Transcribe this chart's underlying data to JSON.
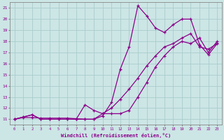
{
  "background_color": "#cce5e5",
  "line_color": "#8b008b",
  "grid_color": "#aacccc",
  "xlabel": "Windchill (Refroidissement éolien,°C)",
  "yticks": [
    11,
    12,
    13,
    14,
    15,
    16,
    17,
    18,
    19,
    20,
    21
  ],
  "xtick_labels": [
    "0",
    "1",
    "2",
    "3",
    "4",
    "5",
    "6",
    "7",
    "8",
    "9",
    "10",
    "11",
    "12",
    "13",
    "14",
    "15",
    "16",
    "17",
    "18",
    "19",
    "20",
    "21",
    "22",
    "23"
  ],
  "curve_spike_x": [
    0,
    1,
    2,
    3,
    4,
    5,
    6,
    7,
    8,
    9,
    10,
    11,
    12,
    13,
    14,
    15,
    16,
    17,
    18,
    19,
    20,
    21,
    22,
    23
  ],
  "curve_spike_y": [
    11,
    11.2,
    11.4,
    11.0,
    11.0,
    11.0,
    11.0,
    11.0,
    11.0,
    11.0,
    11.3,
    12.5,
    15.5,
    17.5,
    21.2,
    20.3,
    19.2,
    18.8,
    19.5,
    20.0,
    20.0,
    17.7,
    16.8,
    17.8
  ],
  "curve_mid_x": [
    0,
    1,
    2,
    3,
    4,
    5,
    6,
    7,
    8,
    9,
    10,
    11,
    12,
    13,
    14,
    15,
    16,
    17,
    18,
    19,
    20,
    21,
    22,
    23
  ],
  "curve_mid_y": [
    11,
    11.2,
    11.4,
    11.0,
    11.0,
    11.0,
    11.0,
    11.0,
    12.3,
    11.8,
    11.5,
    11.5,
    11.5,
    11.8,
    13.0,
    14.3,
    15.7,
    16.7,
    17.5,
    18.0,
    17.8,
    18.3,
    17.0,
    18.0
  ],
  "curve_diag_x": [
    0,
    1,
    2,
    3,
    4,
    5,
    6,
    7,
    8,
    9,
    10,
    11,
    12,
    13,
    14,
    15,
    16,
    17,
    18,
    19,
    20,
    21,
    22,
    23
  ],
  "curve_diag_y": [
    11,
    11.15,
    11.15,
    11.1,
    11.1,
    11.1,
    11.1,
    11.05,
    11.0,
    11.0,
    11.5,
    12.0,
    12.8,
    13.7,
    14.7,
    15.8,
    16.7,
    17.5,
    17.8,
    18.3,
    18.7,
    17.5,
    17.3,
    17.8
  ],
  "xlim": [
    -0.5,
    23.5
  ],
  "ylim": [
    10.5,
    21.5
  ],
  "markersize": 3.5,
  "linewidth": 0.9
}
